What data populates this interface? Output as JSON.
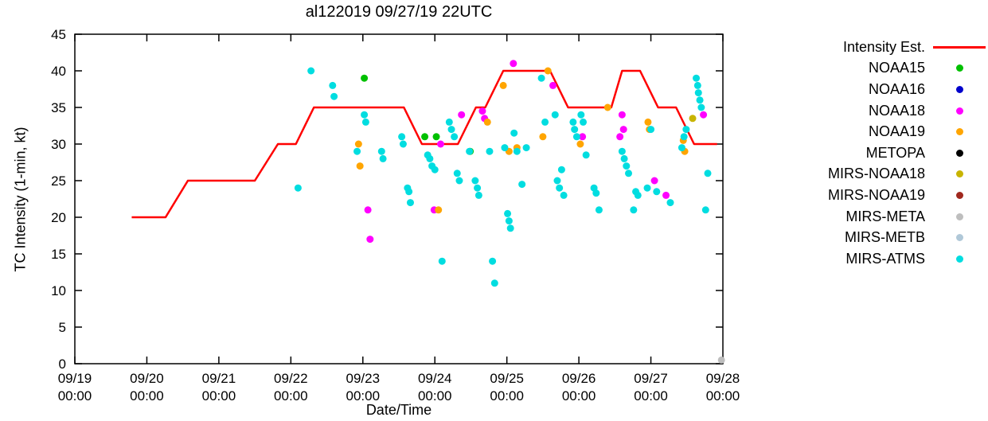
{
  "chart_data": {
    "type": "scatter",
    "title": "al122019 09/27/19 22UTC",
    "xlabel": "Date/Time",
    "ylabel": "TC Intensity (1-min, kt)",
    "grid": false,
    "legend_position": "right-outside",
    "x_axis": {
      "tick_labels_line1": [
        "09/19",
        "09/20",
        "09/21",
        "09/22",
        "09/23",
        "09/24",
        "09/25",
        "09/26",
        "09/27",
        "09/28"
      ],
      "tick_label_line2": "00:00",
      "range_days": [
        0,
        9
      ]
    },
    "y_axis": {
      "ticks": [
        0,
        5,
        10,
        15,
        20,
        25,
        30,
        35,
        40,
        45
      ],
      "ylim": [
        0,
        45
      ]
    },
    "intensity_line": {
      "label": "Intensity Est.",
      "color": "#ff0000",
      "points": [
        [
          0.79,
          20
        ],
        [
          1.26,
          20
        ],
        [
          1.57,
          25
        ],
        [
          2.5,
          25
        ],
        [
          2.82,
          30
        ],
        [
          3.07,
          30
        ],
        [
          3.32,
          35
        ],
        [
          4.57,
          35
        ],
        [
          4.82,
          30
        ],
        [
          5.32,
          30
        ],
        [
          5.57,
          35
        ],
        [
          5.7,
          35
        ],
        [
          5.95,
          40
        ],
        [
          6.6,
          40
        ],
        [
          6.85,
          35
        ],
        [
          7.45,
          35
        ],
        [
          7.6,
          40
        ],
        [
          7.85,
          40
        ],
        [
          8.1,
          35
        ],
        [
          8.35,
          35
        ],
        [
          8.6,
          30
        ],
        [
          8.92,
          30
        ]
      ]
    },
    "series": [
      {
        "name": "NOAA15",
        "color": "#00c000",
        "points": [
          [
            4.02,
            39
          ],
          [
            4.86,
            31
          ],
          [
            5.02,
            31
          ],
          [
            5.49,
            29
          ]
        ]
      },
      {
        "name": "NOAA16",
        "color": "#0000cc",
        "points": []
      },
      {
        "name": "NOAA18",
        "color": "#ff00ff",
        "points": [
          [
            4.07,
            21
          ],
          [
            4.1,
            17
          ],
          [
            4.99,
            21
          ],
          [
            5.08,
            30
          ],
          [
            5.37,
            34
          ],
          [
            5.66,
            34.5
          ],
          [
            5.69,
            33.5
          ],
          [
            6.09,
            41
          ],
          [
            6.64,
            38
          ],
          [
            7.05,
            31
          ],
          [
            7.57,
            31
          ],
          [
            7.6,
            34
          ],
          [
            7.62,
            32
          ],
          [
            8.05,
            25
          ],
          [
            8.21,
            23
          ],
          [
            8.73,
            34
          ]
        ]
      },
      {
        "name": "NOAA19",
        "color": "#ffa500",
        "points": [
          [
            3.94,
            30
          ],
          [
            3.96,
            27
          ],
          [
            5.05,
            21
          ],
          [
            5.73,
            33
          ],
          [
            5.95,
            38
          ],
          [
            6.03,
            29
          ],
          [
            6.14,
            29.5
          ],
          [
            6.5,
            31
          ],
          [
            6.57,
            40
          ],
          [
            7.02,
            30
          ],
          [
            7.4,
            35
          ],
          [
            7.96,
            33
          ],
          [
            7.98,
            32
          ],
          [
            8.45,
            30.5
          ],
          [
            8.47,
            29
          ]
        ]
      },
      {
        "name": "METOPA",
        "color": "#000000",
        "points": []
      },
      {
        "name": "MIRS-NOAA18",
        "color": "#c8b400",
        "points": [
          [
            8.58,
            33.5
          ]
        ]
      },
      {
        "name": "MIRS-NOAA19",
        "color": "#a0281e",
        "points": []
      },
      {
        "name": "MIRS-META",
        "color": "#bebebe",
        "points": [
          [
            8.98,
            0.5
          ]
        ]
      },
      {
        "name": "MIRS-METB",
        "color": "#b0c8d8",
        "points": []
      },
      {
        "name": "MIRS-ATMS",
        "color": "#00dde0",
        "points": [
          [
            3.1,
            24
          ],
          [
            3.28,
            40
          ],
          [
            3.58,
            38
          ],
          [
            3.6,
            36.5
          ],
          [
            3.92,
            29
          ],
          [
            4.02,
            34
          ],
          [
            4.04,
            33
          ],
          [
            4.26,
            29
          ],
          [
            4.28,
            28
          ],
          [
            4.54,
            31
          ],
          [
            4.56,
            30
          ],
          [
            4.62,
            24
          ],
          [
            4.64,
            23.5
          ],
          [
            4.66,
            22
          ],
          [
            4.9,
            28.5
          ],
          [
            4.93,
            28
          ],
          [
            4.96,
            27
          ],
          [
            5.0,
            26.5
          ],
          [
            5.1,
            14
          ],
          [
            5.2,
            33
          ],
          [
            5.23,
            32
          ],
          [
            5.27,
            31
          ],
          [
            5.31,
            26
          ],
          [
            5.34,
            25
          ],
          [
            5.48,
            29
          ],
          [
            5.56,
            25
          ],
          [
            5.59,
            24
          ],
          [
            5.61,
            23
          ],
          [
            5.76,
            29
          ],
          [
            5.8,
            14
          ],
          [
            5.83,
            11
          ],
          [
            5.97,
            29.5
          ],
          [
            6.01,
            20.5
          ],
          [
            6.03,
            19.5
          ],
          [
            6.05,
            18.5
          ],
          [
            6.1,
            31.5
          ],
          [
            6.14,
            29
          ],
          [
            6.21,
            24.5
          ],
          [
            6.27,
            29.5
          ],
          [
            6.48,
            39
          ],
          [
            6.53,
            33
          ],
          [
            6.67,
            34
          ],
          [
            6.7,
            25
          ],
          [
            6.73,
            24
          ],
          [
            6.76,
            26.5
          ],
          [
            6.79,
            23
          ],
          [
            6.92,
            33
          ],
          [
            6.94,
            32
          ],
          [
            6.97,
            31
          ],
          [
            7.03,
            34
          ],
          [
            7.06,
            33
          ],
          [
            7.1,
            28.5
          ],
          [
            7.21,
            24
          ],
          [
            7.24,
            23.3
          ],
          [
            7.28,
            21
          ],
          [
            7.6,
            29
          ],
          [
            7.63,
            28
          ],
          [
            7.66,
            27
          ],
          [
            7.69,
            26
          ],
          [
            7.76,
            21
          ],
          [
            7.79,
            23.5
          ],
          [
            7.82,
            23
          ],
          [
            7.95,
            24
          ],
          [
            8.0,
            32
          ],
          [
            8.08,
            23.5
          ],
          [
            8.27,
            22
          ],
          [
            8.43,
            29.5
          ],
          [
            8.46,
            31
          ],
          [
            8.49,
            32
          ],
          [
            8.63,
            39
          ],
          [
            8.65,
            38
          ],
          [
            8.66,
            37
          ],
          [
            8.68,
            36
          ],
          [
            8.7,
            35
          ],
          [
            8.76,
            21
          ],
          [
            8.79,
            26
          ]
        ]
      }
    ]
  }
}
